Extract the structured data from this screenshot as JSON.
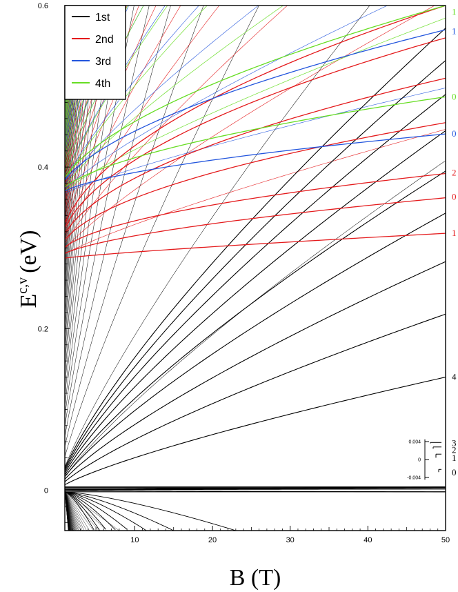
{
  "chart_data": {
    "type": "line",
    "title": "",
    "xlabel": "B (T)",
    "ylabel_main": "E",
    "ylabel_sup": "c,v",
    "ylabel_unit": "(eV)",
    "xlim": [
      1,
      50
    ],
    "ylim": [
      -0.05,
      0.6
    ],
    "x_ticks": [
      10,
      20,
      30,
      40,
      50
    ],
    "y_ticks": [
      {
        "value": 0,
        "label": "0"
      },
      {
        "value": 0.2,
        "label": "0.2"
      },
      {
        "value": 0.4,
        "label": "0.4"
      },
      {
        "value": 0.6,
        "label": "0.6"
      }
    ],
    "legend_position": "top-left",
    "series": [
      {
        "name": "1st",
        "color": "#000000",
        "onset": 0.0,
        "bands": [
          {
            "level": 0,
            "E50": 0.004
          },
          {
            "level": 1,
            "E50": 0.003
          },
          {
            "level": 2,
            "E50": 0.0015
          },
          {
            "level": 3,
            "E50": -0.002
          },
          {
            "level": 4,
            "E50": 0.14
          },
          {
            "level": 5,
            "E50": 0.218
          },
          {
            "level": 6,
            "E50": 0.283
          },
          {
            "level": 7,
            "E50": 0.343
          },
          {
            "level": 8,
            "E50": 0.395
          },
          {
            "level": 9,
            "E50": 0.445
          },
          {
            "level": 10,
            "E50": 0.49
          },
          {
            "level": 11,
            "E50": 0.532
          },
          {
            "level": 12,
            "E50": 0.572
          }
        ]
      },
      {
        "name": "2nd",
        "color": "#e41a1c",
        "onset": 0.286,
        "bands": [
          {
            "level": 1,
            "E50": 0.318
          },
          {
            "level": 0,
            "E50": 0.362
          },
          {
            "level": 2,
            "E50": 0.392
          },
          {
            "level": 3,
            "E50": 0.455
          },
          {
            "level": 4,
            "E50": 0.51
          },
          {
            "level": 5,
            "E50": 0.56
          },
          {
            "level": 6,
            "E50": 0.6
          }
        ]
      },
      {
        "name": "3rd",
        "color": "#2255dd",
        "onset": 0.362,
        "bands": [
          {
            "level": 0,
            "E50": 0.441
          },
          {
            "level": 1,
            "E50": 0.57
          }
        ]
      },
      {
        "name": "4th",
        "color": "#66dd22",
        "onset": 0.362,
        "bands": [
          {
            "level": 0,
            "E50": 0.487
          },
          {
            "level": 1,
            "E50": 0.6
          }
        ]
      }
    ],
    "valence_curves": [
      {
        "B_end": 23
      },
      {
        "B_end": 15
      },
      {
        "B_end": 11.5
      },
      {
        "B_end": 9.2
      },
      {
        "B_end": 7.6
      },
      {
        "B_end": 6.4
      },
      {
        "B_end": 5.5
      },
      {
        "B_end": 4.8
      }
    ],
    "right_labels": [
      {
        "text": "1",
        "E": 0.592,
        "color": "#66dd22"
      },
      {
        "text": "1",
        "E": 0.568,
        "color": "#2255dd"
      },
      {
        "text": "0",
        "E": 0.487,
        "color": "#66dd22"
      },
      {
        "text": "0",
        "E": 0.441,
        "color": "#2255dd"
      },
      {
        "text": "2",
        "E": 0.393,
        "color": "#e41a1c"
      },
      {
        "text": "0",
        "E": 0.363,
        "color": "#e41a1c"
      },
      {
        "text": "1",
        "E": 0.318,
        "color": "#e41a1c"
      },
      {
        "text": "4",
        "E": 0.14,
        "color": "#000000"
      }
    ],
    "inset": {
      "ticks": [
        {
          "value": 0.004,
          "label": "0.004"
        },
        {
          "value": 0,
          "label": "0"
        },
        {
          "value": -0.004,
          "label": "-0.004"
        }
      ],
      "level_labels": [
        "3",
        "2",
        "1",
        "0"
      ]
    }
  }
}
